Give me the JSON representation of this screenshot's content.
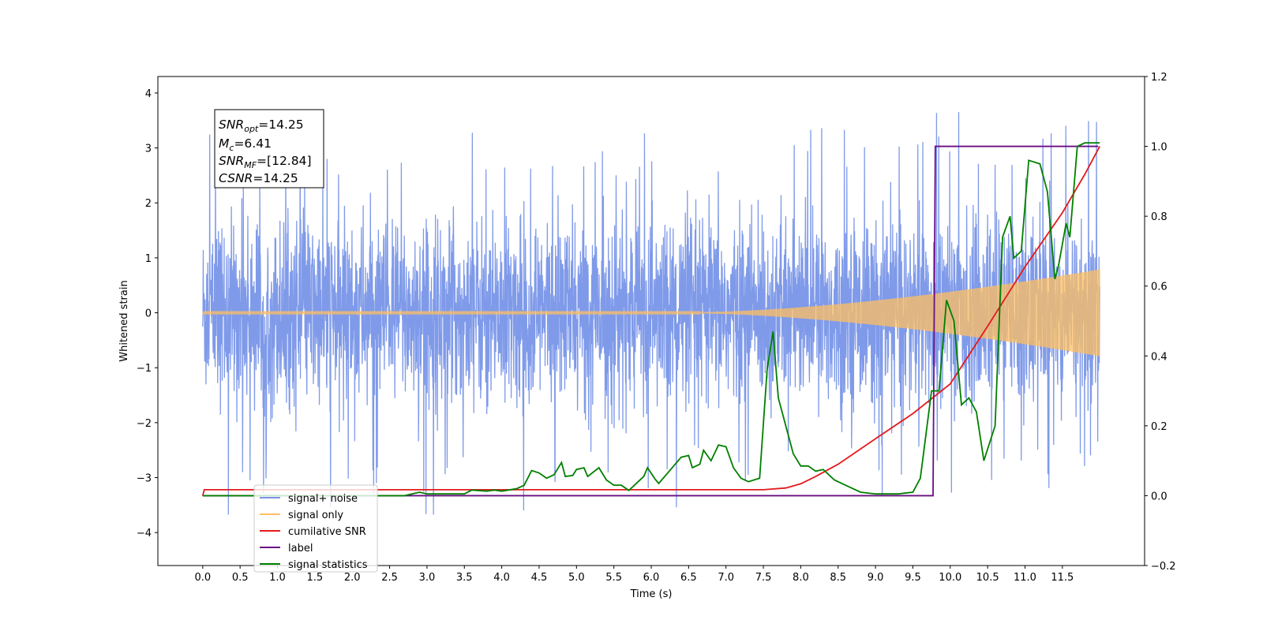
{
  "chart_data": {
    "type": "line",
    "xlabel": "Time (s)",
    "ylabel": "Whitened strain",
    "xlim": [
      -0.6,
      12.6
    ],
    "ylim": [
      -4.6,
      4.3
    ],
    "y2lim": [
      -0.2,
      1.2
    ],
    "xticks": [
      "0.0",
      "0.5",
      "1.0",
      "1.5",
      "2.0",
      "2.5",
      "3.0",
      "3.5",
      "4.0",
      "4.5",
      "5.0",
      "5.5",
      "6.0",
      "6.5",
      "7.0",
      "7.5",
      "8.0",
      "8.5",
      "9.0",
      "9.5",
      "10.0",
      "10.5",
      "11.0",
      "11.5"
    ],
    "yticks": [
      "−4",
      "−3",
      "−2",
      "−1",
      "0",
      "1",
      "2",
      "3",
      "4"
    ],
    "y2ticks": [
      "−0.2",
      "0.0",
      "0.2",
      "0.4",
      "0.6",
      "0.8",
      "1.0",
      "1.2"
    ],
    "legend_position": "lower-left",
    "annotation": {
      "snr_opt": {
        "sym": "SNR",
        "sub": "opt",
        "value": "=14.25"
      },
      "mc": {
        "sym": "M",
        "sub": "c",
        "value": "=6.41"
      },
      "snr_mf": {
        "sym": "SNR",
        "sub": "MF",
        "value": "=[12.84]"
      },
      "csnr": {
        "sym": "CSNR",
        "sub": "",
        "value": "=14.25"
      }
    },
    "series": [
      {
        "name": "signal+ noise",
        "color": "#7895e8",
        "axis": "left",
        "kind": "noise",
        "x_range": [
          0.0,
          12.0
        ],
        "std": 1.0,
        "peak_max": 3.9,
        "peak_min": -4.1
      },
      {
        "name": "signal only",
        "color": "#ffbf60",
        "axis": "left",
        "kind": "chirp",
        "x_range": [
          0.0,
          12.0
        ],
        "amplitude_end": 0.78
      },
      {
        "name": "cumilative SNR",
        "color": "#e41a1c",
        "axis": "right",
        "kind": "line",
        "points": [
          [
            0.0,
            0.0
          ],
          [
            0.02,
            0.017
          ],
          [
            7.5,
            0.017
          ],
          [
            7.8,
            0.022
          ],
          [
            8.0,
            0.034
          ],
          [
            8.2,
            0.055
          ],
          [
            8.5,
            0.09
          ],
          [
            9.0,
            0.163
          ],
          [
            9.5,
            0.235
          ],
          [
            10.0,
            0.32
          ],
          [
            10.5,
            0.485
          ],
          [
            11.0,
            0.655
          ],
          [
            11.5,
            0.81
          ],
          [
            11.8,
            0.92
          ],
          [
            12.0,
            1.0
          ]
        ]
      },
      {
        "name": "label",
        "color": "#6a0d83",
        "axis": "right",
        "kind": "line",
        "points": [
          [
            0.0,
            0.0
          ],
          [
            9.77,
            0.0
          ],
          [
            9.8,
            1.0
          ],
          [
            11.98,
            1.0
          ]
        ]
      },
      {
        "name": "signal statistics",
        "color": "#008000",
        "axis": "right",
        "kind": "line",
        "points": [
          [
            0.0,
            0.0
          ],
          [
            2.7,
            0.0
          ],
          [
            2.9,
            0.01
          ],
          [
            3.0,
            0.005
          ],
          [
            3.5,
            0.005
          ],
          [
            3.6,
            0.016
          ],
          [
            3.8,
            0.013
          ],
          [
            3.9,
            0.016
          ],
          [
            4.0,
            0.013
          ],
          [
            4.2,
            0.02
          ],
          [
            4.3,
            0.03
          ],
          [
            4.4,
            0.072
          ],
          [
            4.5,
            0.065
          ],
          [
            4.6,
            0.05
          ],
          [
            4.7,
            0.06
          ],
          [
            4.8,
            0.095
          ],
          [
            4.85,
            0.055
          ],
          [
            4.95,
            0.058
          ],
          [
            5.0,
            0.075
          ],
          [
            5.1,
            0.08
          ],
          [
            5.15,
            0.055
          ],
          [
            5.3,
            0.08
          ],
          [
            5.4,
            0.045
          ],
          [
            5.5,
            0.03
          ],
          [
            5.6,
            0.03
          ],
          [
            5.7,
            0.015
          ],
          [
            5.8,
            0.035
          ],
          [
            5.9,
            0.055
          ],
          [
            5.95,
            0.08
          ],
          [
            6.05,
            0.048
          ],
          [
            6.1,
            0.035
          ],
          [
            6.3,
            0.085
          ],
          [
            6.4,
            0.11
          ],
          [
            6.5,
            0.115
          ],
          [
            6.55,
            0.08
          ],
          [
            6.65,
            0.09
          ],
          [
            6.7,
            0.13
          ],
          [
            6.8,
            0.1
          ],
          [
            6.9,
            0.145
          ],
          [
            7.0,
            0.14
          ],
          [
            7.05,
            0.11
          ],
          [
            7.1,
            0.08
          ],
          [
            7.2,
            0.05
          ],
          [
            7.3,
            0.04
          ],
          [
            7.45,
            0.05
          ],
          [
            7.55,
            0.36
          ],
          [
            7.63,
            0.47
          ],
          [
            7.7,
            0.28
          ],
          [
            7.8,
            0.2
          ],
          [
            7.9,
            0.12
          ],
          [
            8.0,
            0.085
          ],
          [
            8.1,
            0.085
          ],
          [
            8.2,
            0.07
          ],
          [
            8.3,
            0.075
          ],
          [
            8.45,
            0.045
          ],
          [
            8.6,
            0.03
          ],
          [
            8.8,
            0.01
          ],
          [
            9.0,
            0.005
          ],
          [
            9.3,
            0.005
          ],
          [
            9.5,
            0.01
          ],
          [
            9.6,
            0.05
          ],
          [
            9.75,
            0.3
          ],
          [
            9.85,
            0.3
          ],
          [
            9.95,
            0.56
          ],
          [
            10.05,
            0.5
          ],
          [
            10.15,
            0.26
          ],
          [
            10.25,
            0.28
          ],
          [
            10.35,
            0.24
          ],
          [
            10.45,
            0.1
          ],
          [
            10.6,
            0.2
          ],
          [
            10.7,
            0.74
          ],
          [
            10.8,
            0.8
          ],
          [
            10.85,
            0.68
          ],
          [
            10.95,
            0.7
          ],
          [
            11.05,
            0.96
          ],
          [
            11.2,
            0.95
          ],
          [
            11.3,
            0.87
          ],
          [
            11.4,
            0.62
          ],
          [
            11.45,
            0.66
          ],
          [
            11.55,
            0.78
          ],
          [
            11.6,
            0.74
          ],
          [
            11.7,
            1.0
          ],
          [
            11.8,
            1.01
          ],
          [
            12.0,
            1.01
          ]
        ]
      }
    ]
  }
}
